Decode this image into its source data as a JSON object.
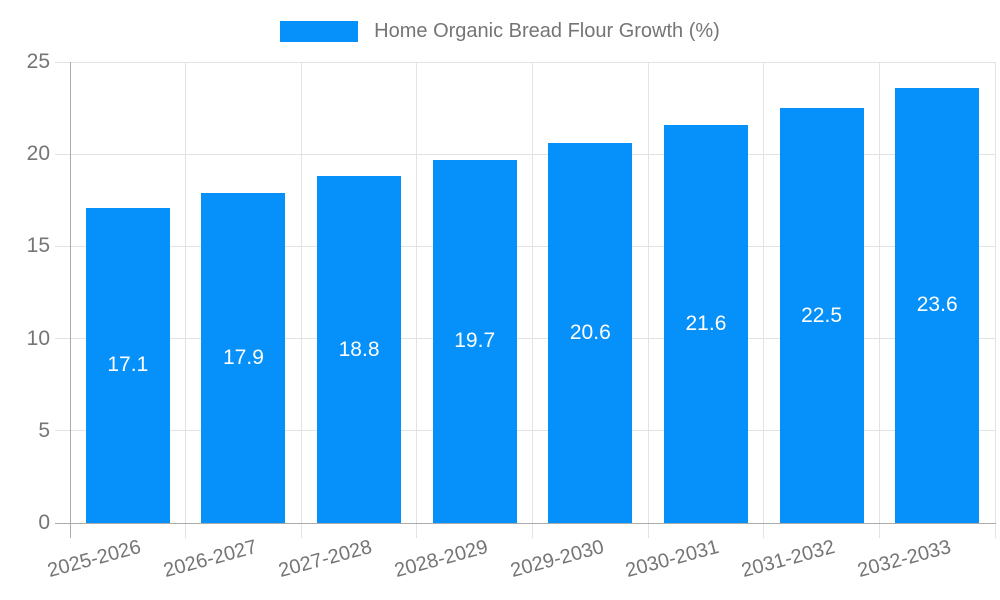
{
  "legend": {
    "label": "Home Organic Bread Flour Growth (%)"
  },
  "colors": {
    "bar": "#0590fa",
    "grid": "#e3e3e3",
    "axis": "#ababab",
    "tick_label": "#757575",
    "title_text": "#757575",
    "value_label": "#ffffff",
    "background": "#ffffff"
  },
  "chart_data": {
    "type": "bar",
    "title": "Home Organic Bread Flour Growth (%)",
    "categories": [
      "2025-2026",
      "2026-2027",
      "2027-2028",
      "2028-2029",
      "2029-2030",
      "2030-2031",
      "2031-2032",
      "2032-2033"
    ],
    "values": [
      17.1,
      17.9,
      18.8,
      19.7,
      20.6,
      21.6,
      22.5,
      23.6
    ],
    "value_labels": [
      "17.1",
      "17.9",
      "18.8",
      "19.7",
      "20.6",
      "21.6",
      "22.5",
      "23.6"
    ],
    "xlabel": "",
    "ylabel": "",
    "ylim": [
      0,
      25
    ],
    "yticks": [
      0,
      5,
      10,
      15,
      20,
      25
    ],
    "grid": true,
    "legend_position": "top-center",
    "x_tick_rotation_deg": -15,
    "series_color": "#0590fa"
  }
}
